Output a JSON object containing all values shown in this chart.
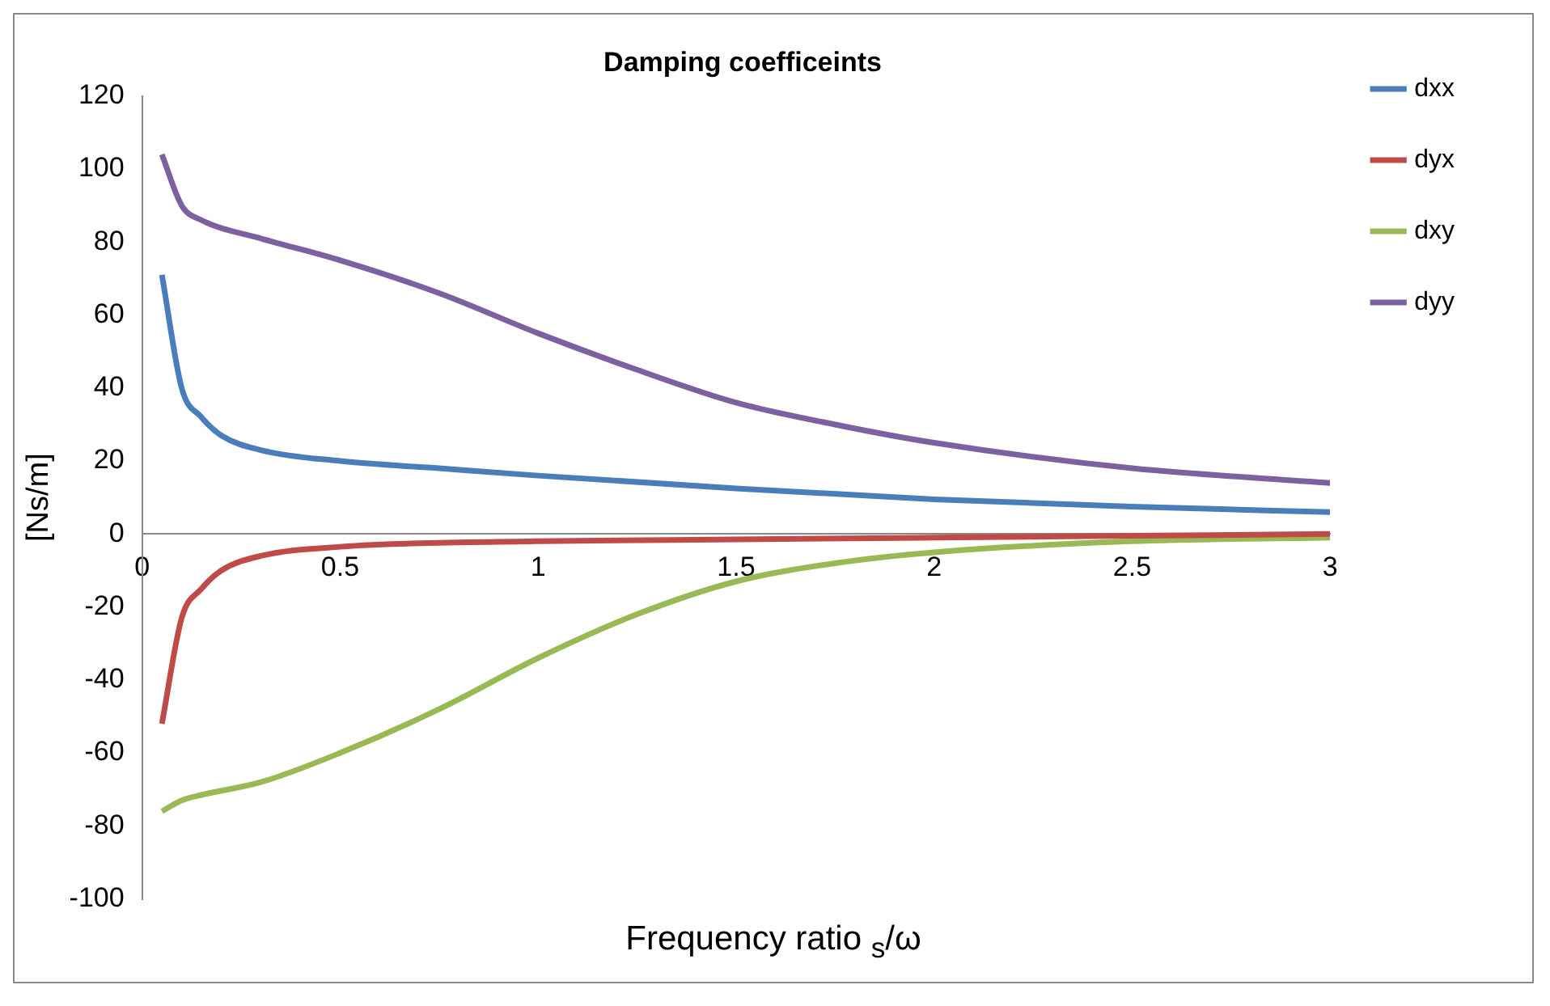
{
  "chart_data": {
    "type": "line",
    "title": "Damping coefficeints",
    "xlabel": "Frequency ratio $_{s}$/ω",
    "ylabel": "[Ns/m]",
    "xlim": [
      0,
      3
    ],
    "xticks": [
      0,
      0.5,
      1,
      1.5,
      2,
      2.5,
      3
    ],
    "ylim": [
      -100,
      120
    ],
    "yticks": [
      -100,
      -80,
      -60,
      -40,
      -20,
      0,
      20,
      40,
      60,
      80,
      100,
      120
    ],
    "grid": false,
    "legend": "top right",
    "marker": "none",
    "line_style": "solid",
    "series": [
      {
        "name": "dxx",
        "color": "#4a7ebb",
        "x": [
          0.05,
          0.1,
          0.15,
          0.2,
          0.3,
          0.5,
          0.75,
          1,
          1.5,
          2,
          2.5,
          3
        ],
        "values": [
          71,
          40,
          32,
          27,
          23,
          20,
          18,
          16,
          12.5,
          9.5,
          7.5,
          6
        ]
      },
      {
        "name": "dyx",
        "color": "#be4b48",
        "x": [
          0.05,
          0.1,
          0.15,
          0.2,
          0.3,
          0.5,
          1,
          1.5,
          2,
          2.5,
          3
        ],
        "values": [
          -52,
          -23,
          -15,
          -10,
          -6,
          -3.5,
          -2,
          -1.5,
          -1,
          -0.5,
          0
        ]
      },
      {
        "name": "dxy",
        "color": "#98b954",
        "x": [
          0.05,
          0.1,
          0.15,
          0.3,
          0.5,
          0.75,
          1,
          1.25,
          1.5,
          1.75,
          2,
          2.5,
          3
        ],
        "values": [
          -76,
          -73,
          -71.5,
          -68,
          -60,
          -48,
          -34,
          -22,
          -13,
          -8,
          -5,
          -2,
          -1
        ]
      },
      {
        "name": "dyy",
        "color": "#7d60a0",
        "x": [
          0.05,
          0.1,
          0.15,
          0.3,
          0.5,
          0.75,
          1,
          1.25,
          1.5,
          1.75,
          2,
          2.5,
          3
        ],
        "values": [
          104,
          90,
          86,
          81,
          75,
          66,
          55,
          45,
          36,
          30,
          25,
          18,
          14
        ]
      }
    ]
  }
}
